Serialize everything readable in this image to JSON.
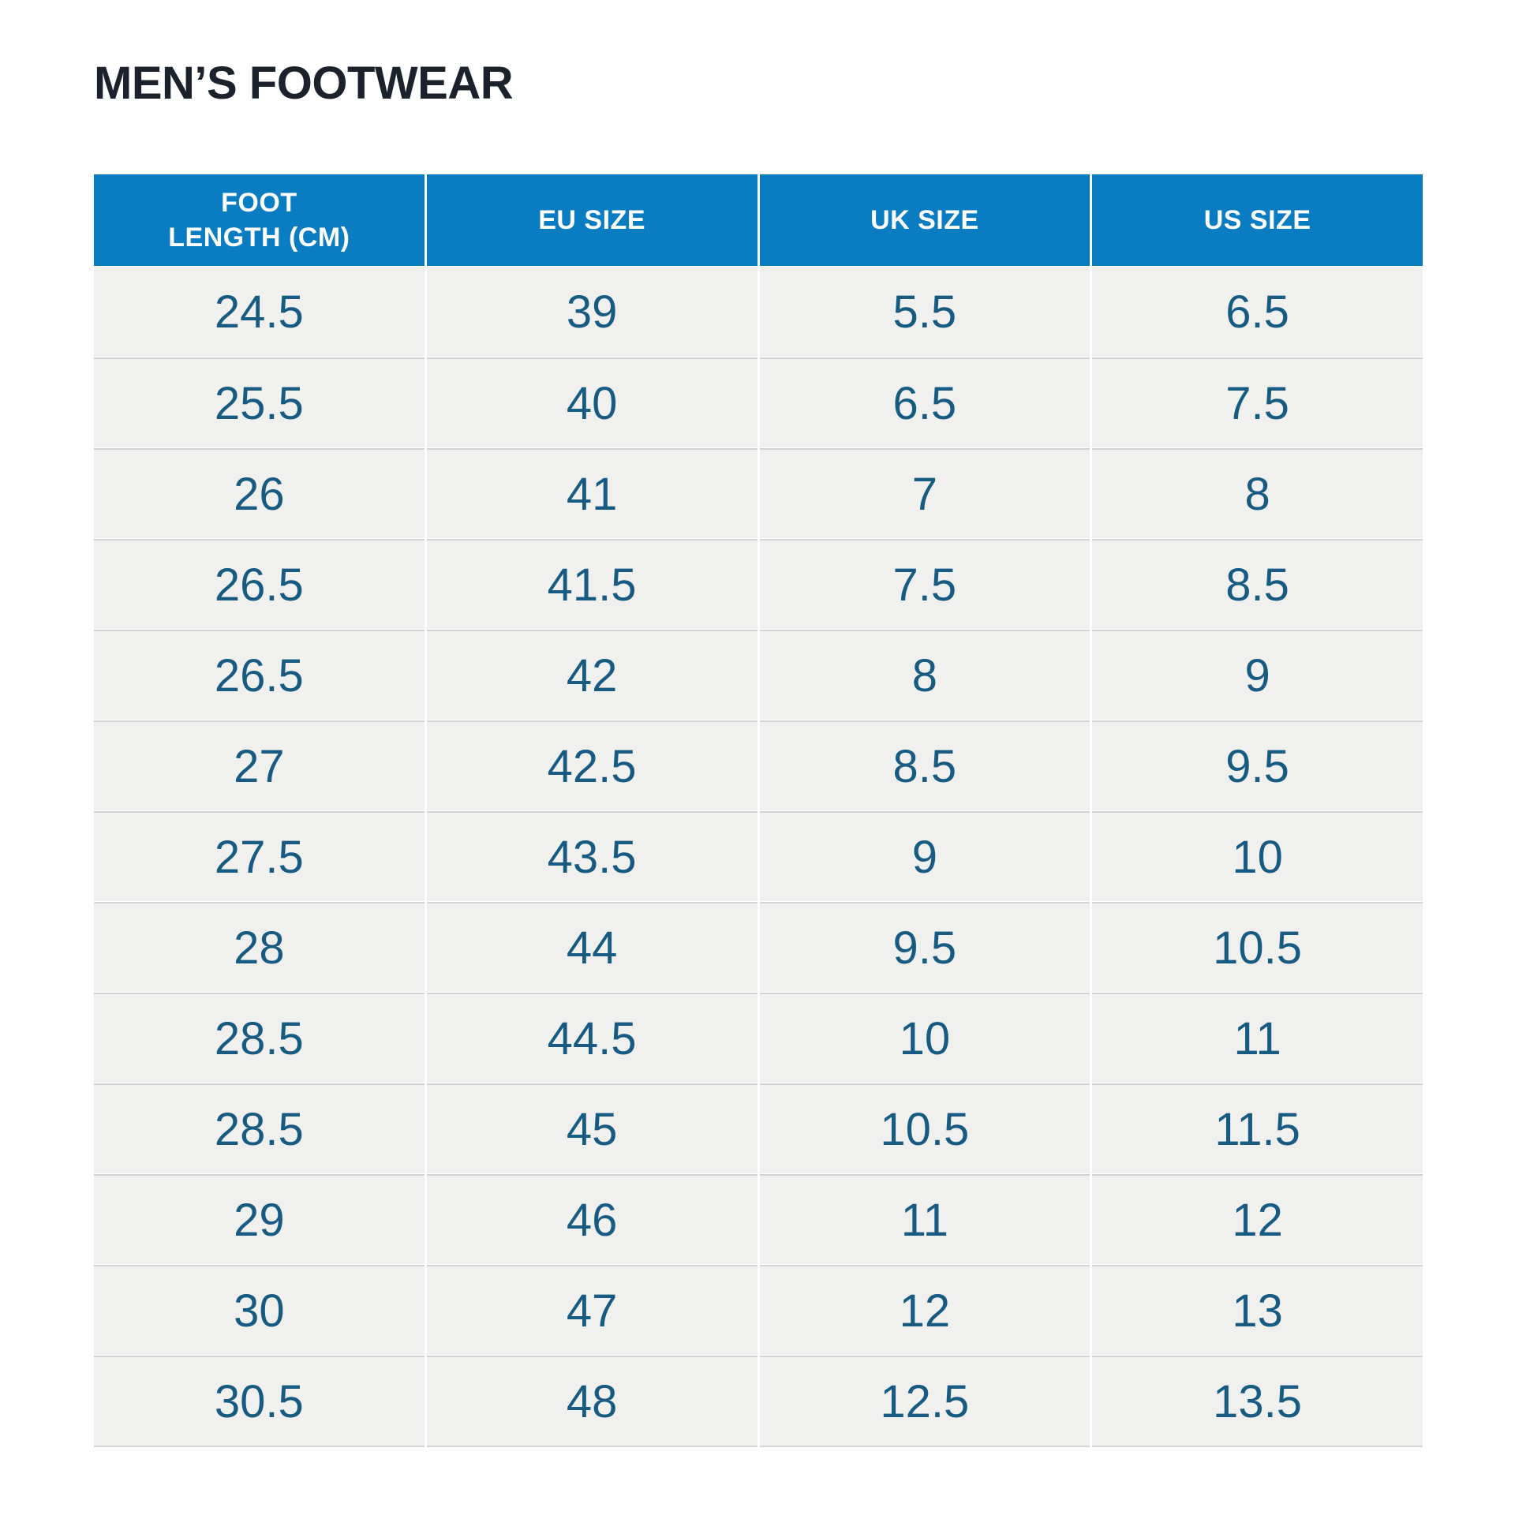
{
  "page": {
    "title": "MEN’S FOOTWEAR"
  },
  "colors": {
    "header_bg": "#0A7DC2",
    "header_text": "#FFFFFF",
    "cell_text": "#175A82",
    "cell_bg": "#F0F0EF",
    "row_divider": "#D2D2D2",
    "title_text": "#1B222B",
    "page_bg": "#FFFFFF"
  },
  "table": {
    "headers": [
      {
        "id": "foot-length-cm",
        "label": "FOOT\nLENGTH (CM)"
      },
      {
        "id": "eu-size",
        "label": "EU SIZE"
      },
      {
        "id": "uk-size",
        "label": "UK SIZE"
      },
      {
        "id": "us-size",
        "label": "US SIZE"
      }
    ],
    "rows": [
      [
        "24.5",
        "39",
        "5.5",
        "6.5"
      ],
      [
        "25.5",
        "40",
        "6.5",
        "7.5"
      ],
      [
        "26",
        "41",
        "7",
        "8"
      ],
      [
        "26.5",
        "41.5",
        "7.5",
        "8.5"
      ],
      [
        "26.5",
        "42",
        "8",
        "9"
      ],
      [
        "27",
        "42.5",
        "8.5",
        "9.5"
      ],
      [
        "27.5",
        "43.5",
        "9",
        "10"
      ],
      [
        "28",
        "44",
        "9.5",
        "10.5"
      ],
      [
        "28.5",
        "44.5",
        "10",
        "11"
      ],
      [
        "28.5",
        "45",
        "10.5",
        "11.5"
      ],
      [
        "29",
        "46",
        "11",
        "12"
      ],
      [
        "30",
        "47",
        "12",
        "13"
      ],
      [
        "30.5",
        "48",
        "12.5",
        "13.5"
      ]
    ]
  },
  "chart_data": {
    "type": "table",
    "title": "MEN’S FOOTWEAR",
    "columns": [
      "FOOT LENGTH (CM)",
      "EU SIZE",
      "UK SIZE",
      "US SIZE"
    ],
    "rows": [
      [
        24.5,
        39,
        5.5,
        6.5
      ],
      [
        25.5,
        40,
        6.5,
        7.5
      ],
      [
        26,
        41,
        7,
        8
      ],
      [
        26.5,
        41.5,
        7.5,
        8.5
      ],
      [
        26.5,
        42,
        8,
        9
      ],
      [
        27,
        42.5,
        8.5,
        9.5
      ],
      [
        27.5,
        43.5,
        9,
        10
      ],
      [
        28,
        44,
        9.5,
        10.5
      ],
      [
        28.5,
        44.5,
        10,
        11
      ],
      [
        28.5,
        45,
        10.5,
        11.5
      ],
      [
        29,
        46,
        11,
        12
      ],
      [
        30,
        47,
        12,
        13
      ],
      [
        30.5,
        48,
        12.5,
        13.5
      ]
    ],
    "layout_hints": {
      "header_style": "solid blue band, white bold uppercase text",
      "body_style": "light gray rows, steel-blue numerals, centered",
      "grid": "white vertical gaps between columns, gray horizontal rules between rows"
    }
  }
}
